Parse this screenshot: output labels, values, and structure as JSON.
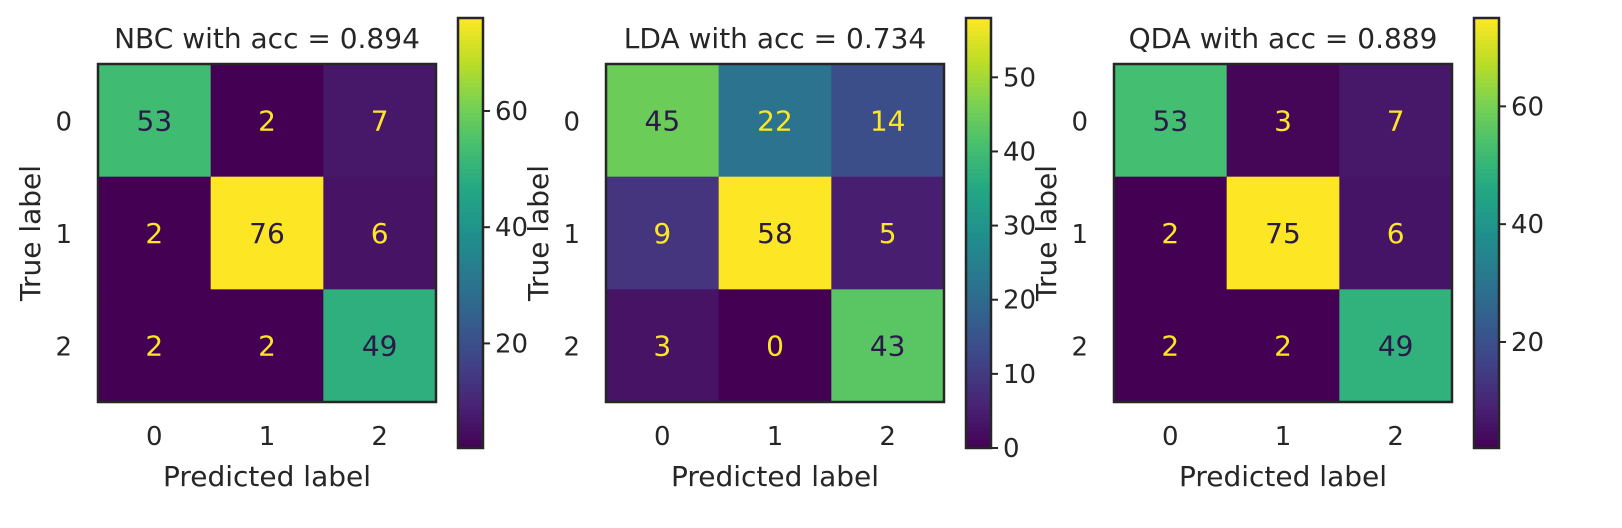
{
  "chart_data": [
    {
      "type": "heatmap",
      "title": "NBC with acc = 0.894",
      "xlabel": "Predicted label",
      "ylabel": "True label",
      "x_ticks": [
        "0",
        "1",
        "2"
      ],
      "y_ticks": [
        "0",
        "1",
        "2"
      ],
      "matrix": [
        [
          53,
          2,
          7
        ],
        [
          2,
          76,
          6
        ],
        [
          2,
          2,
          49
        ]
      ],
      "colorbar_range": [
        2,
        76
      ],
      "colorbar_ticks": [
        20,
        40,
        60
      ],
      "colormap": "viridis"
    },
    {
      "type": "heatmap",
      "title": "LDA with acc = 0.734",
      "xlabel": "Predicted label",
      "ylabel": "True label",
      "x_ticks": [
        "0",
        "1",
        "2"
      ],
      "y_ticks": [
        "0",
        "1",
        "2"
      ],
      "matrix": [
        [
          45,
          22,
          14
        ],
        [
          9,
          58,
          5
        ],
        [
          3,
          0,
          43
        ]
      ],
      "colorbar_range": [
        0,
        58
      ],
      "colorbar_ticks": [
        0,
        10,
        20,
        30,
        40,
        50
      ],
      "colormap": "viridis"
    },
    {
      "type": "heatmap",
      "title": "QDA with acc = 0.889",
      "xlabel": "Predicted label",
      "ylabel": "True label",
      "x_ticks": [
        "0",
        "1",
        "2"
      ],
      "y_ticks": [
        "0",
        "1",
        "2"
      ],
      "matrix": [
        [
          53,
          3,
          7
        ],
        [
          2,
          75,
          6
        ],
        [
          2,
          2,
          49
        ]
      ],
      "colorbar_range": [
        2,
        75
      ],
      "colorbar_ticks": [
        20,
        40,
        60
      ],
      "colormap": "viridis"
    }
  ]
}
